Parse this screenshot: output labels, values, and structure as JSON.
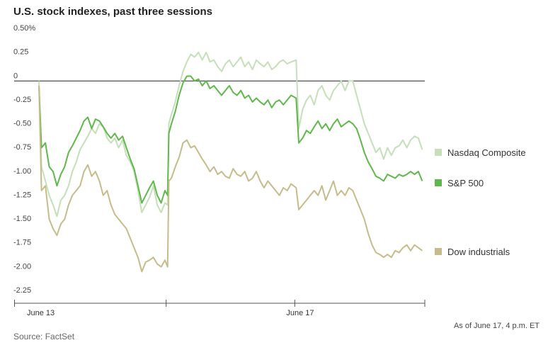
{
  "title": "U.S. stock indexes, past three sessions",
  "source": "Source: FactSet",
  "as_of": "As of June 17, 4 p.m. ET",
  "chart_data": {
    "type": "line",
    "title": "U.S. stock indexes, past three sessions",
    "xlabel": "",
    "ylabel": "",
    "ylim": [
      -2.25,
      0.5
    ],
    "y_ticks": [
      0.5,
      0.25,
      0,
      -0.25,
      -0.5,
      -0.75,
      -1.0,
      -1.25,
      -1.5,
      -1.75,
      -2.0,
      -2.25
    ],
    "y_tick_labels": [
      "0.50%",
      "0.25",
      "0",
      "-0.25",
      "-0.50",
      "-0.75",
      "-1.00",
      "-1.25",
      "-1.50",
      "-1.75",
      "-2.00",
      "-2.25"
    ],
    "x_sessions": 3,
    "x_tick_labels": [
      {
        "label": "June 13",
        "session_pos": 0
      },
      {
        "label": "June 17",
        "session_pos": 2
      }
    ],
    "zero_line": true,
    "grid": false,
    "legend_position": "right",
    "x_resolution": "session fraction (0 = June 13 open, 3 = June 17 close)",
    "series": [
      {
        "name": "Nasdaq Composite",
        "color": "#c5dfb9",
        "points": [
          [
            0.0,
            0.0
          ],
          [
            0.02,
            -0.9
          ],
          [
            0.05,
            -1.05
          ],
          [
            0.08,
            -1.2
          ],
          [
            0.11,
            -1.3
          ],
          [
            0.14,
            -1.42
          ],
          [
            0.17,
            -1.25
          ],
          [
            0.2,
            -1.2
          ],
          [
            0.23,
            -1.1
          ],
          [
            0.26,
            -0.95
          ],
          [
            0.29,
            -0.85
          ],
          [
            0.32,
            -0.72
          ],
          [
            0.35,
            -0.65
          ],
          [
            0.38,
            -0.58
          ],
          [
            0.41,
            -0.5
          ],
          [
            0.44,
            -0.55
          ],
          [
            0.47,
            -0.45
          ],
          [
            0.5,
            -0.48
          ],
          [
            0.53,
            -0.6
          ],
          [
            0.56,
            -0.65
          ],
          [
            0.59,
            -0.6
          ],
          [
            0.62,
            -0.7
          ],
          [
            0.65,
            -0.62
          ],
          [
            0.68,
            -0.78
          ],
          [
            0.71,
            -0.85
          ],
          [
            0.74,
            -0.95
          ],
          [
            0.77,
            -1.15
          ],
          [
            0.8,
            -1.38
          ],
          [
            0.83,
            -1.3
          ],
          [
            0.86,
            -1.22
          ],
          [
            0.89,
            -1.1
          ],
          [
            0.92,
            -1.3
          ],
          [
            0.95,
            -1.38
          ],
          [
            0.98,
            -1.28
          ],
          [
            1.0,
            -1.3
          ],
          [
            1.01,
            -0.45
          ],
          [
            1.03,
            -0.35
          ],
          [
            1.06,
            -0.22
          ],
          [
            1.09,
            -0.05
          ],
          [
            1.12,
            0.1
          ],
          [
            1.15,
            0.2
          ],
          [
            1.18,
            0.28
          ],
          [
            1.21,
            0.25
          ],
          [
            1.24,
            0.3
          ],
          [
            1.27,
            0.22
          ],
          [
            1.3,
            0.3
          ],
          [
            1.33,
            0.2
          ],
          [
            1.36,
            0.22
          ],
          [
            1.39,
            0.15
          ],
          [
            1.42,
            0.1
          ],
          [
            1.45,
            0.18
          ],
          [
            1.48,
            0.22
          ],
          [
            1.51,
            0.15
          ],
          [
            1.54,
            0.2
          ],
          [
            1.57,
            0.25
          ],
          [
            1.6,
            0.15
          ],
          [
            1.63,
            0.2
          ],
          [
            1.66,
            0.12
          ],
          [
            1.69,
            0.22
          ],
          [
            1.72,
            0.18
          ],
          [
            1.75,
            0.15
          ],
          [
            1.78,
            0.2
          ],
          [
            1.81,
            0.12
          ],
          [
            1.84,
            0.15
          ],
          [
            1.87,
            0.2
          ],
          [
            1.9,
            0.22
          ],
          [
            1.93,
            0.18
          ],
          [
            1.96,
            0.2
          ],
          [
            2.0,
            0.22
          ],
          [
            2.02,
            -0.5
          ],
          [
            2.05,
            -0.3
          ],
          [
            2.08,
            -0.2
          ],
          [
            2.11,
            -0.15
          ],
          [
            2.14,
            -0.25
          ],
          [
            2.17,
            -0.1
          ],
          [
            2.2,
            -0.05
          ],
          [
            2.23,
            -0.15
          ],
          [
            2.26,
            -0.2
          ],
          [
            2.29,
            -0.1
          ],
          [
            2.32,
            -0.05
          ],
          [
            2.35,
            0.0
          ],
          [
            2.38,
            -0.1
          ],
          [
            2.41,
            0.0
          ],
          [
            2.44,
            0.0
          ],
          [
            2.47,
            -0.15
          ],
          [
            2.5,
            -0.3
          ],
          [
            2.53,
            -0.45
          ],
          [
            2.56,
            -0.55
          ],
          [
            2.59,
            -0.65
          ],
          [
            2.62,
            -0.75
          ],
          [
            2.65,
            -0.7
          ],
          [
            2.68,
            -0.82
          ],
          [
            2.71,
            -0.7
          ],
          [
            2.74,
            -0.78
          ],
          [
            2.77,
            -0.7
          ],
          [
            2.8,
            -0.68
          ],
          [
            2.83,
            -0.62
          ],
          [
            2.86,
            -0.7
          ],
          [
            2.89,
            -0.62
          ],
          [
            2.92,
            -0.58
          ],
          [
            2.95,
            -0.6
          ],
          [
            2.98,
            -0.72
          ]
        ]
      },
      {
        "name": "S&P 500",
        "color": "#5eb94a",
        "points": [
          [
            0.0,
            -0.05
          ],
          [
            0.02,
            -0.7
          ],
          [
            0.05,
            -0.65
          ],
          [
            0.08,
            -0.9
          ],
          [
            0.11,
            -0.95
          ],
          [
            0.14,
            -1.1
          ],
          [
            0.17,
            -0.98
          ],
          [
            0.2,
            -0.9
          ],
          [
            0.23,
            -0.75
          ],
          [
            0.26,
            -0.68
          ],
          [
            0.29,
            -0.6
          ],
          [
            0.32,
            -0.52
          ],
          [
            0.35,
            -0.42
          ],
          [
            0.38,
            -0.38
          ],
          [
            0.41,
            -0.5
          ],
          [
            0.44,
            -0.4
          ],
          [
            0.47,
            -0.42
          ],
          [
            0.5,
            -0.48
          ],
          [
            0.53,
            -0.55
          ],
          [
            0.56,
            -0.6
          ],
          [
            0.59,
            -0.55
          ],
          [
            0.62,
            -0.62
          ],
          [
            0.65,
            -0.58
          ],
          [
            0.68,
            -0.7
          ],
          [
            0.71,
            -0.82
          ],
          [
            0.74,
            -0.92
          ],
          [
            0.77,
            -1.1
          ],
          [
            0.8,
            -1.28
          ],
          [
            0.83,
            -1.2
          ],
          [
            0.86,
            -1.12
          ],
          [
            0.89,
            -1.05
          ],
          [
            0.92,
            -1.2
          ],
          [
            0.95,
            -1.28
          ],
          [
            0.98,
            -1.15
          ],
          [
            1.0,
            -1.2
          ],
          [
            1.01,
            -0.55
          ],
          [
            1.03,
            -0.45
          ],
          [
            1.06,
            -0.32
          ],
          [
            1.09,
            -0.15
          ],
          [
            1.12,
            -0.02
          ],
          [
            1.15,
            0.05
          ],
          [
            1.18,
            0.05
          ],
          [
            1.21,
            0.0
          ],
          [
            1.24,
            0.02
          ],
          [
            1.27,
            -0.05
          ],
          [
            1.3,
            0.0
          ],
          [
            1.33,
            -0.08
          ],
          [
            1.36,
            -0.05
          ],
          [
            1.39,
            -0.1
          ],
          [
            1.42,
            -0.15
          ],
          [
            1.45,
            -0.1
          ],
          [
            1.48,
            -0.05
          ],
          [
            1.51,
            -0.12
          ],
          [
            1.54,
            -0.15
          ],
          [
            1.57,
            -0.1
          ],
          [
            1.6,
            -0.18
          ],
          [
            1.63,
            -0.15
          ],
          [
            1.66,
            -0.22
          ],
          [
            1.69,
            -0.18
          ],
          [
            1.72,
            -0.22
          ],
          [
            1.75,
            -0.25
          ],
          [
            1.78,
            -0.2
          ],
          [
            1.81,
            -0.28
          ],
          [
            1.84,
            -0.22
          ],
          [
            1.87,
            -0.2
          ],
          [
            1.9,
            -0.25
          ],
          [
            1.93,
            -0.2
          ],
          [
            1.96,
            -0.15
          ],
          [
            2.0,
            -0.18
          ],
          [
            2.02,
            -0.65
          ],
          [
            2.05,
            -0.6
          ],
          [
            2.08,
            -0.52
          ],
          [
            2.11,
            -0.55
          ],
          [
            2.14,
            -0.48
          ],
          [
            2.17,
            -0.42
          ],
          [
            2.2,
            -0.5
          ],
          [
            2.23,
            -0.45
          ],
          [
            2.26,
            -0.52
          ],
          [
            2.29,
            -0.45
          ],
          [
            2.32,
            -0.4
          ],
          [
            2.35,
            -0.48
          ],
          [
            2.38,
            -0.45
          ],
          [
            2.41,
            -0.42
          ],
          [
            2.44,
            -0.45
          ],
          [
            2.47,
            -0.5
          ],
          [
            2.5,
            -0.62
          ],
          [
            2.53,
            -0.75
          ],
          [
            2.56,
            -0.85
          ],
          [
            2.59,
            -0.92
          ],
          [
            2.62,
            -1.0
          ],
          [
            2.65,
            -1.02
          ],
          [
            2.68,
            -1.05
          ],
          [
            2.71,
            -0.98
          ],
          [
            2.74,
            -1.0
          ],
          [
            2.77,
            -1.02
          ],
          [
            2.8,
            -0.98
          ],
          [
            2.83,
            -1.0
          ],
          [
            2.86,
            -0.98
          ],
          [
            2.89,
            -0.95
          ],
          [
            2.92,
            -0.98
          ],
          [
            2.95,
            -0.95
          ],
          [
            2.98,
            -1.05
          ]
        ]
      },
      {
        "name": "Dow industrials",
        "color": "#c6bc8b",
        "points": [
          [
            0.0,
            -0.05
          ],
          [
            0.02,
            -1.15
          ],
          [
            0.05,
            -1.1
          ],
          [
            0.08,
            -1.45
          ],
          [
            0.11,
            -1.55
          ],
          [
            0.14,
            -1.62
          ],
          [
            0.17,
            -1.5
          ],
          [
            0.2,
            -1.45
          ],
          [
            0.23,
            -1.3
          ],
          [
            0.26,
            -1.2
          ],
          [
            0.29,
            -1.15
          ],
          [
            0.32,
            -1.1
          ],
          [
            0.35,
            -0.95
          ],
          [
            0.38,
            -0.88
          ],
          [
            0.41,
            -1.0
          ],
          [
            0.44,
            -0.95
          ],
          [
            0.47,
            -1.05
          ],
          [
            0.5,
            -1.2
          ],
          [
            0.53,
            -1.15
          ],
          [
            0.56,
            -1.3
          ],
          [
            0.59,
            -1.4
          ],
          [
            0.62,
            -1.45
          ],
          [
            0.65,
            -1.5
          ],
          [
            0.68,
            -1.55
          ],
          [
            0.71,
            -1.65
          ],
          [
            0.74,
            -1.75
          ],
          [
            0.77,
            -1.85
          ],
          [
            0.8,
            -2.0
          ],
          [
            0.83,
            -1.9
          ],
          [
            0.86,
            -1.88
          ],
          [
            0.89,
            -1.85
          ],
          [
            0.92,
            -1.92
          ],
          [
            0.95,
            -1.95
          ],
          [
            0.98,
            -1.88
          ],
          [
            1.0,
            -1.95
          ],
          [
            1.01,
            -1.05
          ],
          [
            1.03,
            -1.02
          ],
          [
            1.06,
            -0.9
          ],
          [
            1.09,
            -0.8
          ],
          [
            1.12,
            -0.65
          ],
          [
            1.15,
            -0.62
          ],
          [
            1.18,
            -0.7
          ],
          [
            1.21,
            -0.68
          ],
          [
            1.24,
            -0.75
          ],
          [
            1.27,
            -0.82
          ],
          [
            1.3,
            -0.88
          ],
          [
            1.33,
            -0.95
          ],
          [
            1.36,
            -0.9
          ],
          [
            1.39,
            -0.98
          ],
          [
            1.42,
            -0.95
          ],
          [
            1.45,
            -1.0
          ],
          [
            1.48,
            -1.02
          ],
          [
            1.51,
            -0.92
          ],
          [
            1.54,
            -0.98
          ],
          [
            1.57,
            -1.0
          ],
          [
            1.6,
            -0.95
          ],
          [
            1.63,
            -1.05
          ],
          [
            1.66,
            -1.02
          ],
          [
            1.69,
            -0.95
          ],
          [
            1.72,
            -1.05
          ],
          [
            1.75,
            -1.12
          ],
          [
            1.78,
            -1.05
          ],
          [
            1.81,
            -1.1
          ],
          [
            1.84,
            -1.15
          ],
          [
            1.87,
            -1.2
          ],
          [
            1.9,
            -1.12
          ],
          [
            1.93,
            -1.15
          ],
          [
            1.96,
            -1.08
          ],
          [
            2.0,
            -1.12
          ],
          [
            2.02,
            -1.35
          ],
          [
            2.05,
            -1.3
          ],
          [
            2.08,
            -1.25
          ],
          [
            2.11,
            -1.2
          ],
          [
            2.14,
            -1.15
          ],
          [
            2.17,
            -1.2
          ],
          [
            2.2,
            -1.1
          ],
          [
            2.23,
            -1.25
          ],
          [
            2.26,
            -1.15
          ],
          [
            2.29,
            -1.05
          ],
          [
            2.32,
            -1.2
          ],
          [
            2.35,
            -1.15
          ],
          [
            2.38,
            -1.2
          ],
          [
            2.41,
            -1.12
          ],
          [
            2.44,
            -1.15
          ],
          [
            2.47,
            -1.25
          ],
          [
            2.5,
            -1.35
          ],
          [
            2.53,
            -1.45
          ],
          [
            2.56,
            -1.6
          ],
          [
            2.59,
            -1.72
          ],
          [
            2.62,
            -1.8
          ],
          [
            2.65,
            -1.82
          ],
          [
            2.68,
            -1.85
          ],
          [
            2.71,
            -1.82
          ],
          [
            2.74,
            -1.85
          ],
          [
            2.77,
            -1.78
          ],
          [
            2.8,
            -1.8
          ],
          [
            2.83,
            -1.75
          ],
          [
            2.86,
            -1.72
          ],
          [
            2.89,
            -1.78
          ],
          [
            2.92,
            -1.72
          ],
          [
            2.95,
            -1.75
          ],
          [
            2.98,
            -1.78
          ]
        ]
      }
    ]
  }
}
